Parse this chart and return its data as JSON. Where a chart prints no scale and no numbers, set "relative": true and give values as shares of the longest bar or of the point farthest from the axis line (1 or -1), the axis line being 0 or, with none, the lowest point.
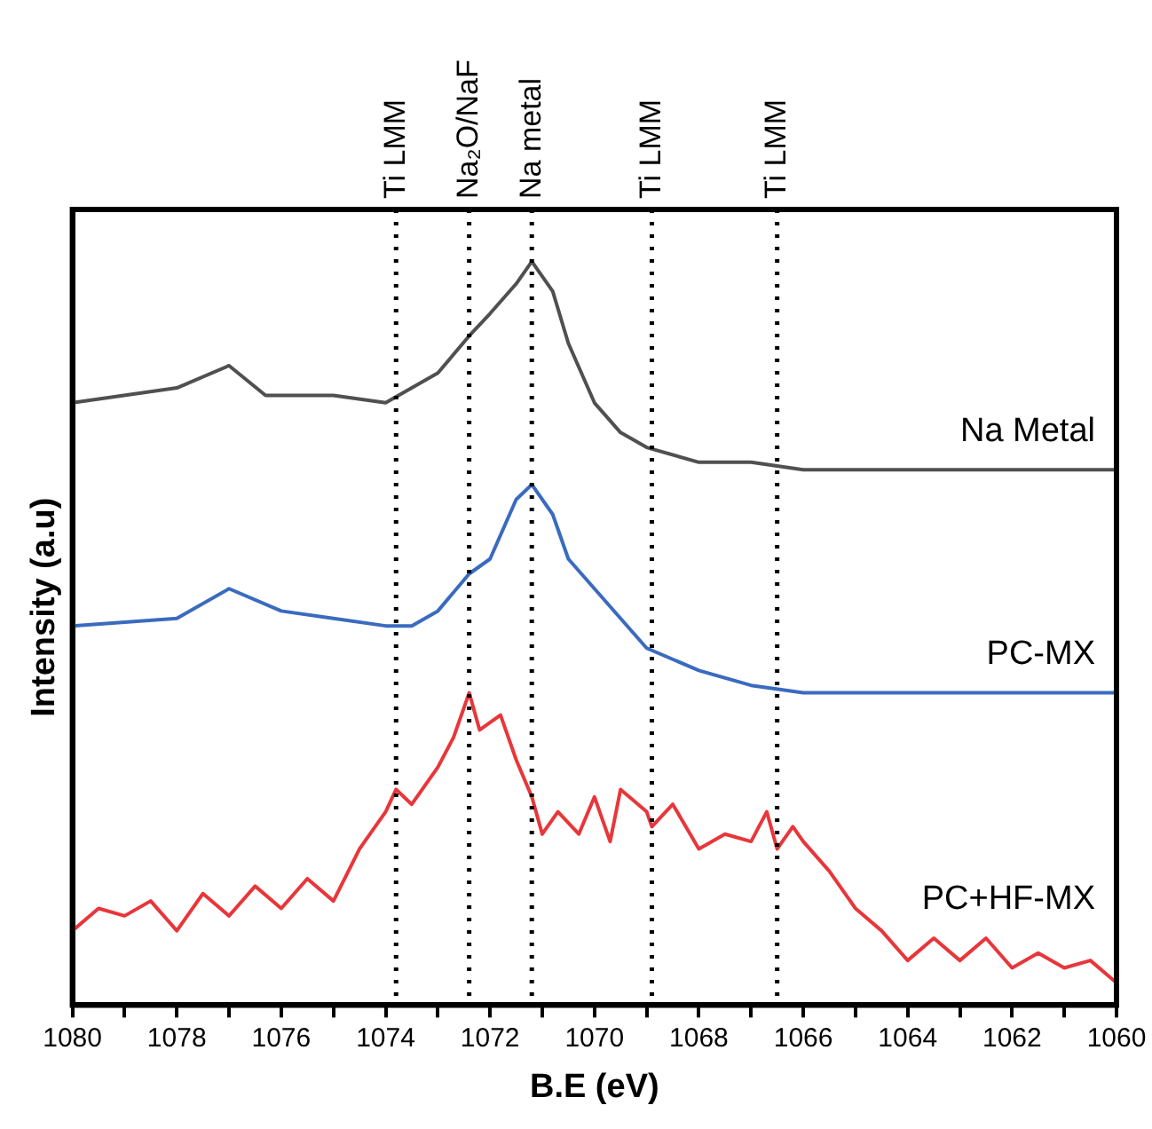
{
  "chart_data": {
    "type": "line",
    "xlabel": "B.E (eV)",
    "ylabel": "Intensity (a.u)",
    "relative": true,
    "xlim": [
      1080,
      1060
    ],
    "xticks": [
      1080,
      {
        "value": 1079,
        "label": null
      },
      1078,
      {
        "value": 1077,
        "label": null
      },
      1076,
      {
        "value": 1075,
        "label": null
      },
      1074,
      {
        "value": 1073,
        "label": null
      },
      1072,
      {
        "value": 1071,
        "label": null
      },
      1070,
      {
        "value": 1069,
        "label": null
      },
      1068,
      {
        "value": 1067,
        "label": null
      },
      1066,
      {
        "value": 1065,
        "label": null
      },
      1064,
      {
        "value": 1063,
        "label": null
      },
      1062,
      {
        "value": 1061,
        "label": null
      },
      1060
    ],
    "tick_labels": "x",
    "grid": false,
    "legend": false,
    "marker": "none",
    "line_style": "solid",
    "series": [
      {
        "name": "Na Metal",
        "color": "#505050",
        "x": [
          1080,
          1078,
          1077,
          1076.3,
          1075,
          1074,
          1073.5,
          1073,
          1072.4,
          1072,
          1071.5,
          1071.2,
          1070.8,
          1070.5,
          1070,
          1069.5,
          1069,
          1068,
          1067,
          1066,
          1064,
          1062,
          1060
        ],
        "values": [
          0.81,
          0.83,
          0.86,
          0.82,
          0.82,
          0.81,
          0.83,
          0.85,
          0.9,
          0.93,
          0.97,
          1.0,
          0.96,
          0.89,
          0.81,
          0.77,
          0.75,
          0.73,
          0.73,
          0.72,
          0.72,
          0.72,
          0.72
        ]
      },
      {
        "name": "PC-MX",
        "color": "#3a6bbf",
        "x": [
          1080,
          1078,
          1077,
          1076,
          1075,
          1074,
          1073.5,
          1073,
          1072.4,
          1072,
          1071.5,
          1071.2,
          1070.8,
          1070.5,
          1070,
          1069.5,
          1069,
          1068,
          1067,
          1066,
          1064,
          1062,
          1060
        ],
        "values": [
          0.51,
          0.52,
          0.56,
          0.53,
          0.52,
          0.51,
          0.51,
          0.53,
          0.58,
          0.6,
          0.68,
          0.7,
          0.66,
          0.6,
          0.56,
          0.52,
          0.48,
          0.45,
          0.43,
          0.42,
          0.42,
          0.42,
          0.42
        ]
      },
      {
        "name": "PC+HF-MX",
        "color": "#e8363a",
        "x": [
          1080,
          1079.5,
          1079,
          1078.5,
          1078,
          1077.5,
          1077,
          1076.5,
          1076,
          1075.5,
          1075,
          1074.5,
          1074,
          1073.8,
          1073.5,
          1073,
          1072.7,
          1072.4,
          1072.2,
          1071.8,
          1071.5,
          1071.2,
          1071,
          1070.7,
          1070.3,
          1070,
          1069.7,
          1069.5,
          1069,
          1068.9,
          1068.5,
          1068,
          1067.5,
          1067,
          1066.7,
          1066.5,
          1066.2,
          1066,
          1065.5,
          1065,
          1064.5,
          1064,
          1063.5,
          1063,
          1062.5,
          1062,
          1061.5,
          1061,
          1060.5,
          1060
        ],
        "values": [
          0.1,
          0.13,
          0.12,
          0.14,
          0.1,
          0.15,
          0.12,
          0.16,
          0.13,
          0.17,
          0.14,
          0.21,
          0.26,
          0.29,
          0.27,
          0.32,
          0.36,
          0.42,
          0.37,
          0.39,
          0.33,
          0.28,
          0.23,
          0.26,
          0.23,
          0.28,
          0.22,
          0.29,
          0.26,
          0.24,
          0.27,
          0.21,
          0.23,
          0.22,
          0.26,
          0.21,
          0.24,
          0.22,
          0.18,
          0.13,
          0.1,
          0.06,
          0.09,
          0.06,
          0.09,
          0.05,
          0.07,
          0.05,
          0.06,
          0.03
        ]
      }
    ],
    "ref_lines": [
      {
        "axis": "x",
        "value": 1073.8,
        "label": "Ti LMM",
        "color": "#000000",
        "line_style": "dotted"
      },
      {
        "axis": "x",
        "value": 1072.4,
        "label": "Na₂O/NaF",
        "color": "#000000",
        "line_style": "dotted"
      },
      {
        "axis": "x",
        "value": 1071.2,
        "label": "Na metal",
        "color": "#000000",
        "line_style": "dotted"
      },
      {
        "axis": "x",
        "value": 1068.9,
        "label": "Ti LMM",
        "color": "#000000",
        "line_style": "dotted"
      },
      {
        "axis": "x",
        "value": 1066.5,
        "label": "Ti LMM",
        "color": "#000000",
        "line_style": "dotted"
      }
    ]
  }
}
